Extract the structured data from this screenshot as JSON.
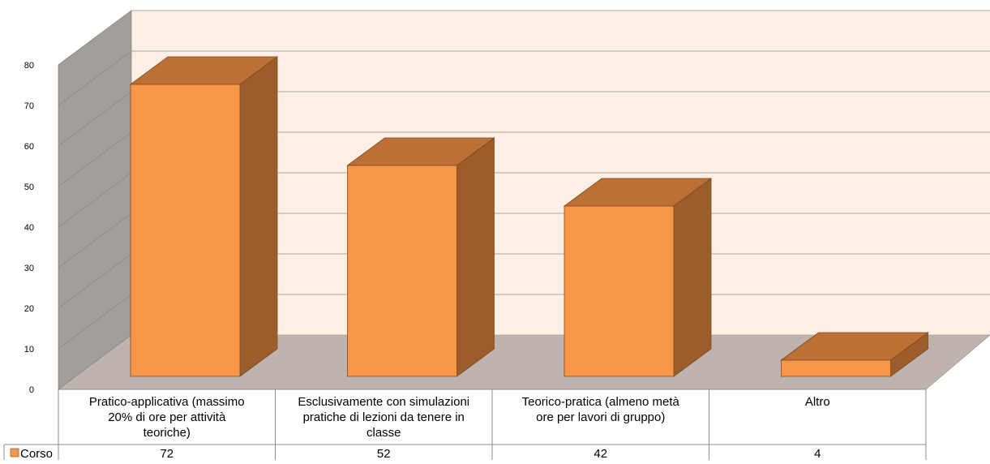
{
  "chart_data": {
    "type": "bar",
    "style": "3d-column-with-data-table",
    "categories": [
      [
        "Pratico-applicativa (massimo",
        "20% di ore per attività",
        "teoriche)"
      ],
      [
        "Esclusivamente con simulazioni",
        "pratiche di lezioni da tenere in",
        "classe"
      ],
      [
        "Teorico-pratica (almeno metà",
        "ore per lavori di gruppo)"
      ],
      [
        "Altro"
      ]
    ],
    "series": [
      {
        "name": "Corso",
        "values": [
          72,
          52,
          42,
          4
        ],
        "value_labels": [
          "72",
          "52",
          "42",
          "4"
        ]
      }
    ],
    "ylim": [
      0,
      80
    ],
    "yticks": [
      "0",
      "10",
      "20",
      "30",
      "40",
      "50",
      "60",
      "70",
      "80"
    ],
    "grid": true,
    "legend": "left of data table",
    "colors": {
      "bar_front": "#F79646",
      "bar_side": "#9C5D2C",
      "bar_top": "#BC7035",
      "bar_edge": "#7F4A1E",
      "back_wall": "#FDEFE6",
      "side_wall": "#A29E9A",
      "floor": "#BFB3AF",
      "grid": "#8C8C8C",
      "table_line": "#8C8C8C"
    }
  }
}
